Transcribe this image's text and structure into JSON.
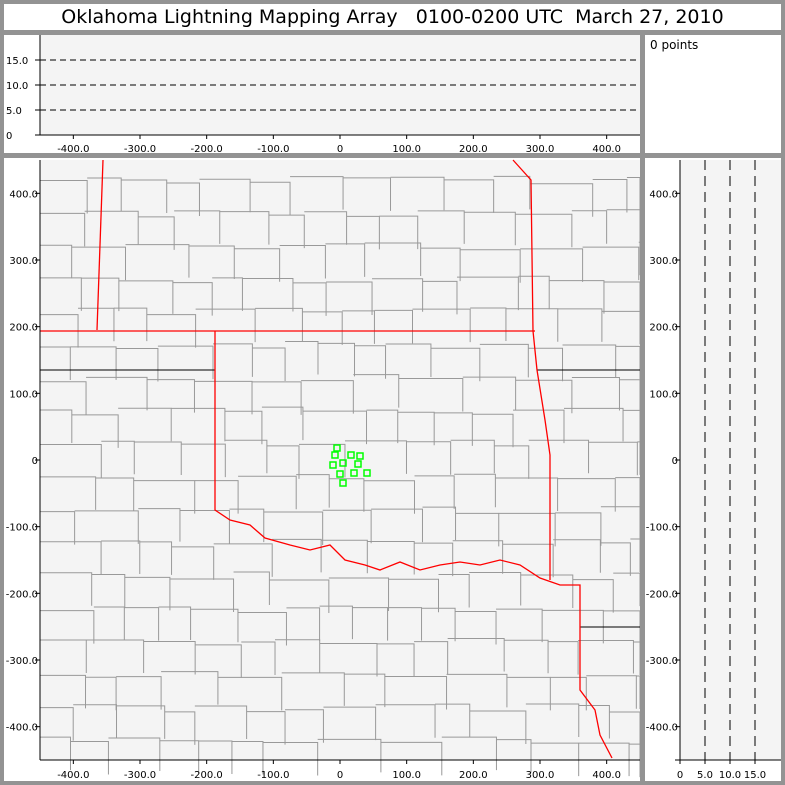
{
  "title": "Oklahoma Lightning Mapping Array   0100-0200 UTC  March 27, 2010",
  "points_label": "0 points",
  "colors": {
    "background": "#f4f4f4",
    "state_border_oklahoma": "#ff0000",
    "county_lines": "#999999",
    "stations": "#00ff00",
    "frame": "#939393"
  },
  "chart_data": [
    {
      "type": "line",
      "panel": "top-altitude-vs-x",
      "xlim": [
        -450,
        450
      ],
      "ylim": [
        0,
        20
      ],
      "xticks": [
        "-400.0",
        "-300.0",
        "-200.0",
        "-100.0",
        "0",
        "100.0",
        "200.0",
        "300.0",
        "400.0"
      ],
      "yticks": [
        "0",
        "5.0",
        "10.0",
        "15.0"
      ],
      "gridlines_y": [
        5,
        10,
        15
      ],
      "grid_style": "dashed"
    },
    {
      "type": "scatter",
      "panel": "plan-view-map",
      "xlim": [
        -450,
        450
      ],
      "ylim": [
        -450,
        450
      ],
      "xticks": [
        "-400.0",
        "-300.0",
        "-200.0",
        "-100.0",
        "0",
        "100.0",
        "200.0",
        "300.0",
        "400.0"
      ],
      "yticks": [
        "-400.0",
        "-300.0",
        "-200.0",
        "-100.0",
        "0",
        "100.0",
        "200.0",
        "300.0",
        "400.0"
      ],
      "stations": [
        [
          -4.5,
          18
        ],
        [
          -7.5,
          7.5
        ],
        [
          16.5,
          7.5
        ],
        [
          30,
          6
        ],
        [
          -10.5,
          -7.5
        ],
        [
          4.5,
          -4.5
        ],
        [
          27,
          -6
        ],
        [
          0,
          -21
        ],
        [
          21,
          -19.5
        ],
        [
          40.5,
          -19.5
        ],
        [
          4.5,
          -34.5
        ]
      ],
      "marker": "open-square"
    },
    {
      "type": "line",
      "panel": "right-y-vs-altitude",
      "xlim": [
        0,
        20
      ],
      "ylim": [
        -450,
        450
      ],
      "xticks": [
        "0",
        "5.0",
        "10.0",
        "15.0"
      ],
      "yticks": [
        "-400.0",
        "-300.0",
        "-200.0",
        "-100.0",
        "0",
        "100.0",
        "200.0",
        "300.0",
        "400.0"
      ],
      "gridlines_x": [
        5,
        10,
        15
      ],
      "grid_style": "dashed"
    }
  ]
}
